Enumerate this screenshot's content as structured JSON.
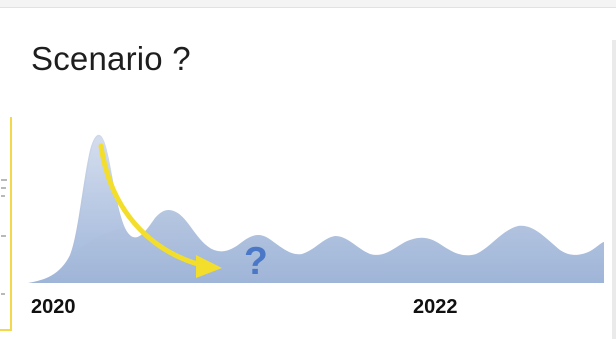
{
  "slide": {
    "title": "Scenario ?",
    "question_mark": "?"
  },
  "chart_data": {
    "type": "area",
    "title": "",
    "xlabel": "",
    "ylabel": "",
    "tick_labels": [
      "2020",
      "2022"
    ],
    "grid": false,
    "annotation": "?",
    "fill_color": "#b7c8e2",
    "arrow_color": "#f3de2c"
  },
  "colors": {
    "accent_yellow": "#f3de2c",
    "question_blue": "#4a77c6"
  }
}
